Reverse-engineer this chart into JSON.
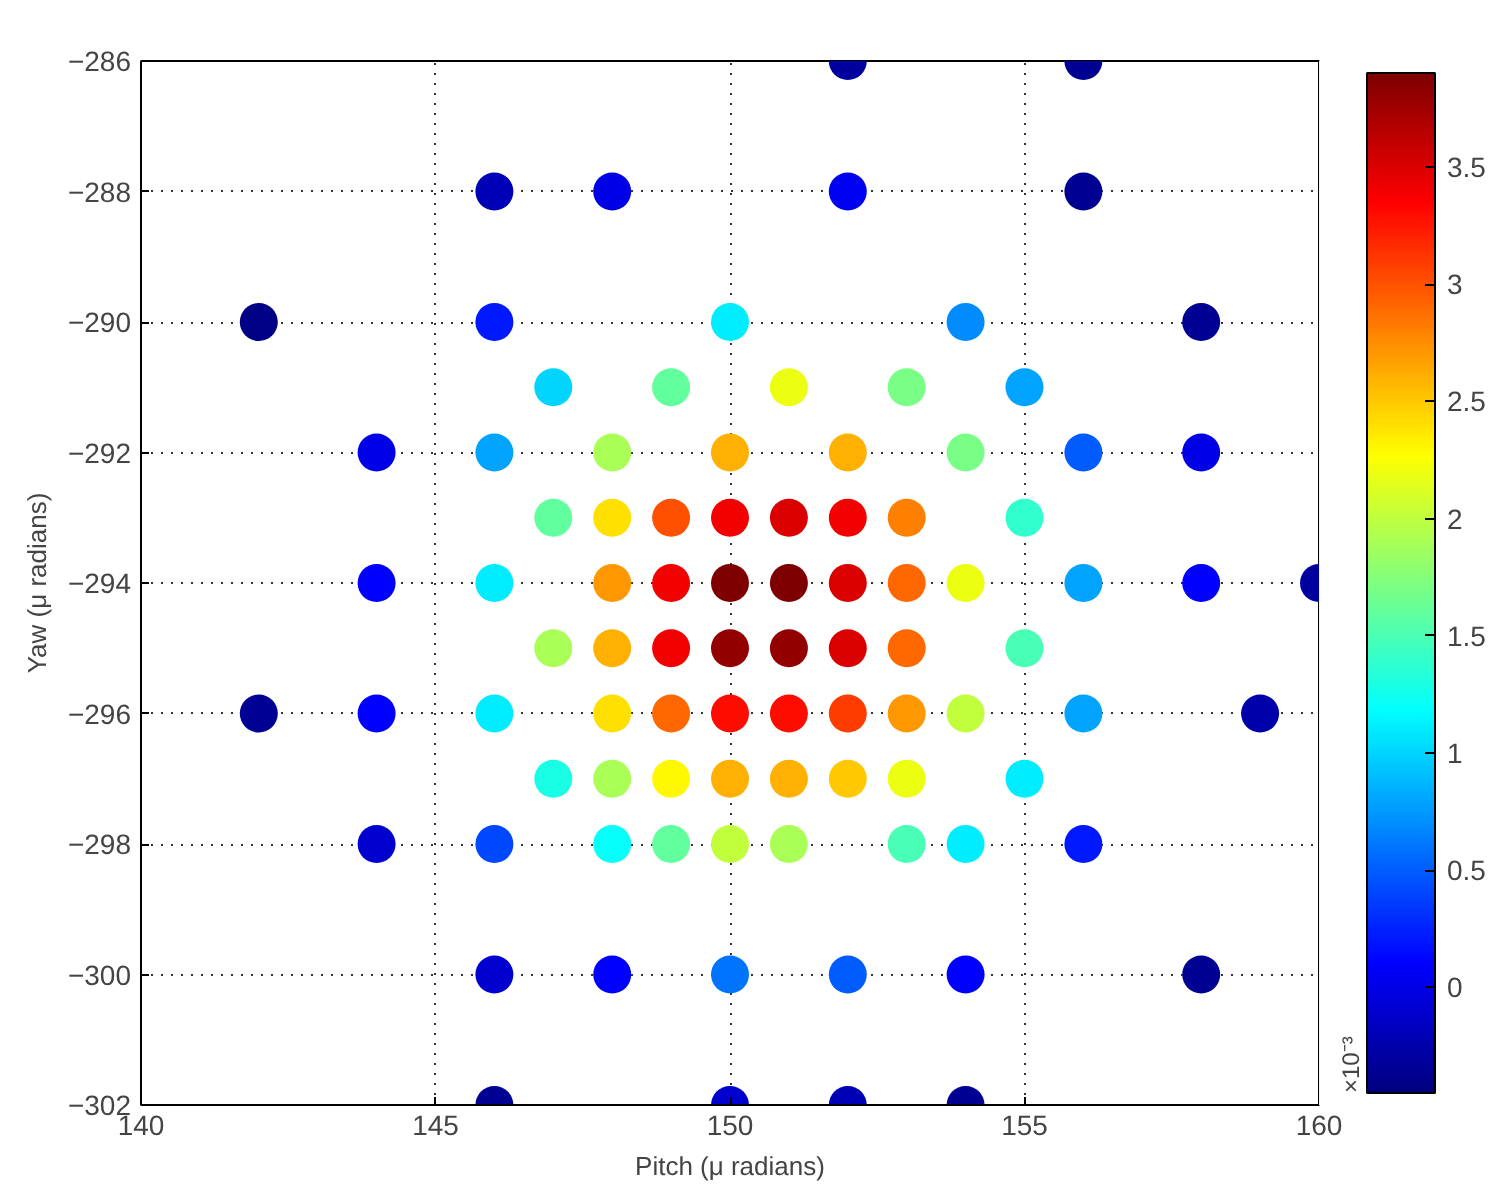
{
  "chart_data": {
    "type": "scatter",
    "xlabel": "Pitch (μ radians)",
    "ylabel": "Yaw (μ radians)",
    "clabel": "×10⁻³",
    "x": [
      152,
      156,
      146,
      148,
      152,
      156,
      142,
      146,
      150,
      154,
      158,
      147,
      149,
      151,
      153,
      155,
      144,
      146,
      148,
      150,
      152,
      154,
      156,
      158,
      147,
      148,
      149,
      150,
      151,
      152,
      153,
      155,
      144,
      146,
      148,
      149,
      150,
      151,
      152,
      153,
      154,
      156,
      158,
      160,
      147,
      148,
      149,
      150,
      151,
      152,
      153,
      155,
      142,
      144,
      146,
      148,
      149,
      150,
      151,
      152,
      153,
      154,
      156,
      159,
      147,
      148,
      149,
      150,
      151,
      152,
      153,
      155,
      144,
      146,
      148,
      149,
      150,
      151,
      153,
      154,
      156,
      146,
      148,
      150,
      152,
      154,
      158,
      146,
      150,
      152,
      154
    ],
    "values": [
      -286,
      -286,
      -288,
      -288,
      -288,
      -288,
      -290,
      -290,
      -290,
      -290,
      -290,
      -291,
      -291,
      -291,
      -291,
      -291,
      -292,
      -292,
      -292,
      -292,
      -292,
      -292,
      -292,
      -292,
      -293,
      -293,
      -293,
      -293,
      -293,
      -293,
      -293,
      -293,
      -294,
      -294,
      -294,
      -294,
      -294,
      -294,
      -294,
      -294,
      -294,
      -294,
      -294,
      -294,
      -295,
      -295,
      -295,
      -295,
      -295,
      -295,
      -295,
      -295,
      -296,
      -296,
      -296,
      -296,
      -296,
      -296,
      -296,
      -296,
      -296,
      -296,
      -296,
      -296,
      -297,
      -297,
      -297,
      -297,
      -297,
      -297,
      -297,
      -297,
      -298,
      -298,
      -298,
      -298,
      -298,
      -298,
      -298,
      -298,
      -298,
      -300,
      -300,
      -300,
      -300,
      -300,
      -300,
      -302,
      -302,
      -302,
      -302
    ],
    "cvalues": [
      -0.3,
      -0.35,
      -0.2,
      0.0,
      0.05,
      -0.35,
      -0.4,
      0.2,
      1.1,
      0.7,
      -0.35,
      1.0,
      1.6,
      2.2,
      1.7,
      0.8,
      0.0,
      0.8,
      1.9,
      2.6,
      2.6,
      1.7,
      0.5,
      0.0,
      1.6,
      2.4,
      3.0,
      3.4,
      3.5,
      3.4,
      2.8,
      1.4,
      0.1,
      1.1,
      2.7,
      3.4,
      3.9,
      3.9,
      3.5,
      2.9,
      2.2,
      0.8,
      0.1,
      -0.3,
      1.9,
      2.6,
      3.4,
      3.8,
      3.8,
      3.5,
      2.9,
      1.5,
      -0.35,
      0.1,
      1.1,
      2.4,
      2.9,
      3.3,
      3.3,
      3.1,
      2.7,
      2.0,
      0.8,
      -0.25,
      1.3,
      1.9,
      2.3,
      2.6,
      2.6,
      2.5,
      2.2,
      1.1,
      -0.1,
      0.4,
      1.2,
      1.6,
      2.0,
      1.9,
      1.5,
      1.1,
      0.2,
      -0.1,
      0.1,
      0.6,
      0.5,
      0.1,
      -0.35,
      -0.35,
      -0.1,
      -0.2,
      -0.35
    ],
    "xlim": [
      140,
      160
    ],
    "xticks": [
      140,
      145,
      150,
      155,
      160
    ],
    "ylim": [
      -302,
      -286
    ],
    "yticks": [
      -302,
      -300,
      -298,
      -296,
      -294,
      -292,
      -290,
      -288,
      -286
    ],
    "clim": [
      -0.45,
      3.9
    ],
    "cticks": [
      0,
      0.5,
      1,
      1.5,
      2,
      2.5,
      3,
      3.5
    ],
    "grid": true,
    "marker": "circle"
  }
}
